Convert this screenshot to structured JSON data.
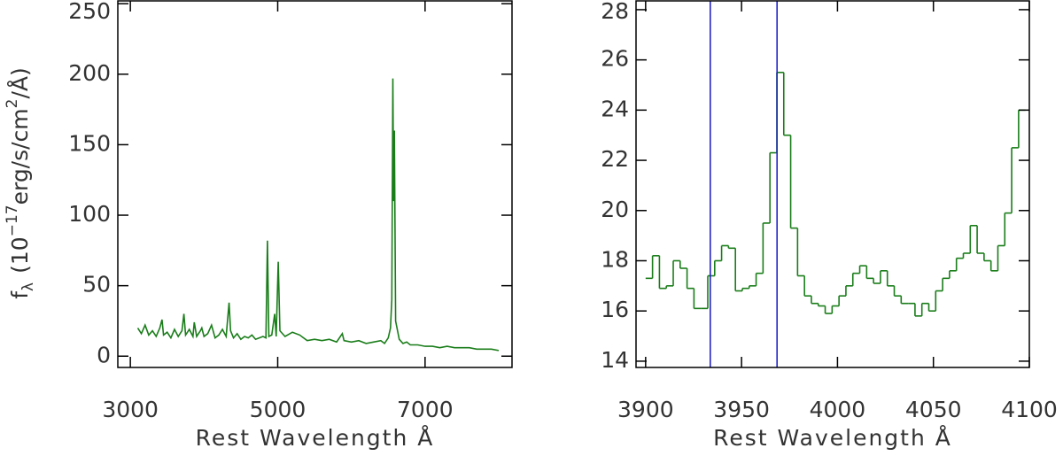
{
  "chart_data": [
    {
      "type": "line",
      "x_label": "Rest Wavelength Å",
      "y_label": {
        "f": "f",
        "sub": "λ",
        "main1": "(10",
        "sup1": "−17",
        "main2": "erg/s/cm",
        "sup2": "2",
        "main3": "/Å)"
      },
      "x": [
        3100,
        3150,
        3200,
        3250,
        3300,
        3350,
        3400,
        3430,
        3450,
        3500,
        3550,
        3600,
        3650,
        3700,
        3727,
        3750,
        3800,
        3850,
        3868,
        3900,
        3950,
        3970,
        4000,
        4050,
        4102,
        4150,
        4200,
        4250,
        4300,
        4340,
        4360,
        4400,
        4450,
        4500,
        4550,
        4600,
        4650,
        4700,
        4750,
        4800,
        4840,
        4861,
        4880,
        4920,
        4959,
        4980,
        5007,
        5030,
        5100,
        5200,
        5300,
        5400,
        5500,
        5600,
        5700,
        5800,
        5876,
        5900,
        6000,
        6100,
        6200,
        6300,
        6400,
        6450,
        6500,
        6530,
        6548,
        6563,
        6573,
        6583,
        6600,
        6650,
        6700,
        6750,
        6800,
        6900,
        7000,
        7100,
        7200,
        7300,
        7400,
        7500,
        7600,
        7700,
        7800,
        7900,
        8000
      ],
      "series": [
        {
          "color": "#1a7d1a",
          "values": [
            20,
            16,
            22,
            15,
            18,
            14,
            20,
            26,
            15,
            17,
            13,
            19,
            14,
            18,
            30,
            15,
            19,
            14,
            24,
            14,
            18,
            20,
            14,
            16,
            22,
            13,
            15,
            19,
            14,
            38,
            18,
            13,
            16,
            12,
            14,
            13,
            15,
            12,
            13,
            14,
            13,
            82,
            14,
            15,
            30,
            14,
            67,
            18,
            14,
            17,
            15,
            11,
            12,
            11,
            12,
            10,
            16,
            11,
            10,
            11,
            9,
            10,
            11,
            9,
            13,
            20,
            40,
            197,
            110,
            160,
            25,
            12,
            9,
            10,
            8,
            8,
            7,
            7,
            6,
            7,
            6,
            6,
            6,
            5,
            5,
            5,
            4
          ]
        }
      ],
      "xlim": [
        2830,
        8180
      ],
      "xticks": [
        3000,
        5000,
        7000
      ],
      "ylim": [
        -8,
        252
      ],
      "yticks": [
        0,
        50,
        100,
        150,
        200,
        250
      ]
    },
    {
      "type": "step",
      "x_label": "Rest Wavelength Å",
      "x": [
        3901.8,
        3905.4,
        3909.0,
        3912.6,
        3916.2,
        3919.8,
        3923.4,
        3927.0,
        3930.6,
        3934.2,
        3937.8,
        3941.4,
        3945.0,
        3948.6,
        3952.2,
        3955.8,
        3959.4,
        3963.0,
        3966.6,
        3970.2,
        3973.8,
        3977.4,
        3981.0,
        3984.6,
        3988.2,
        3991.8,
        3995.4,
        3999.0,
        4002.6,
        4006.2,
        4009.8,
        4013.4,
        4017.0,
        4020.6,
        4024.2,
        4027.8,
        4031.4,
        4035.0,
        4038.6,
        4042.2,
        4045.8,
        4049.4,
        4053.0,
        4056.6,
        4060.2,
        4063.8,
        4067.4,
        4071.0,
        4074.6,
        4078.2,
        4081.8,
        4085.4,
        4089.0,
        4092.6,
        4096.2
      ],
      "bin_width": 3.6,
      "series": [
        {
          "color": "#1a7d1a",
          "values": [
            17.3,
            18.2,
            16.9,
            17.0,
            18.0,
            17.7,
            16.9,
            16.1,
            16.1,
            17.4,
            18.0,
            18.6,
            18.5,
            16.8,
            16.9,
            17.0,
            17.5,
            19.5,
            22.3,
            25.5,
            23.0,
            19.3,
            17.4,
            16.6,
            16.3,
            16.2,
            15.9,
            16.2,
            16.6,
            17.0,
            17.5,
            17.8,
            17.3,
            17.1,
            17.6,
            17.0,
            16.6,
            16.3,
            16.3,
            15.8,
            16.3,
            16.0,
            16.8,
            17.3,
            17.6,
            18.1,
            18.3,
            19.4,
            18.3,
            18.0,
            17.6,
            18.6,
            19.9,
            22.5,
            24.0
          ]
        }
      ],
      "vlines": [
        3933.7,
        3968.5
      ],
      "vline_color": "#2424c8",
      "xlim": [
        3895,
        4100
      ],
      "xticks": [
        3900,
        3950,
        4000,
        4050,
        4100
      ],
      "ylim": [
        13.75,
        28.35
      ],
      "yticks": [
        14,
        16,
        18,
        20,
        22,
        24,
        26,
        28
      ]
    }
  ]
}
